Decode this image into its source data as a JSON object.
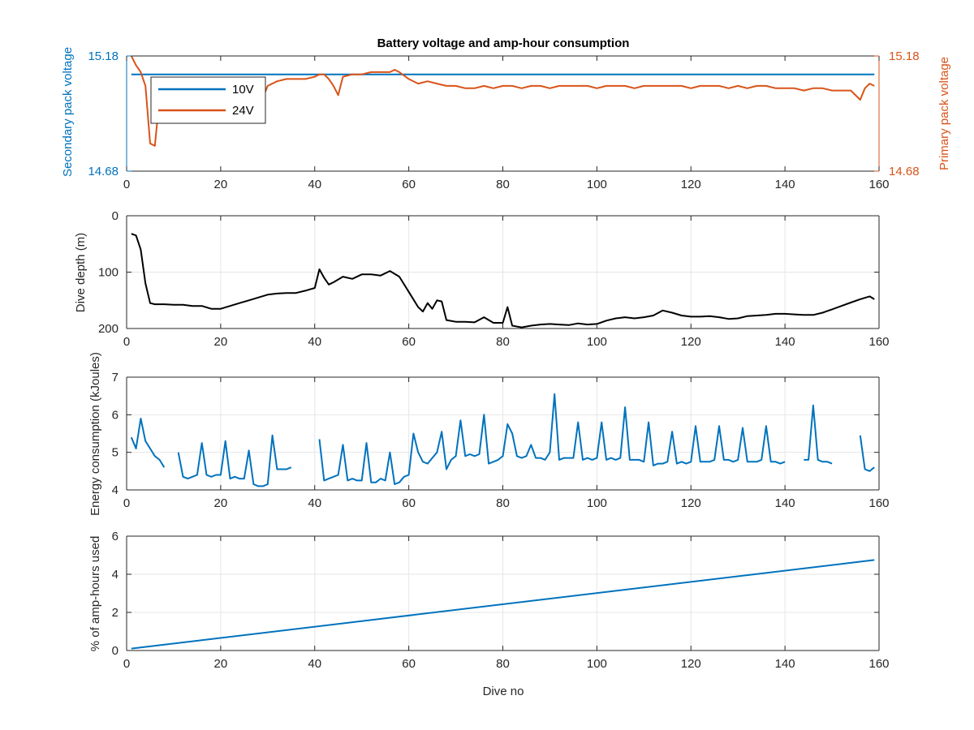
{
  "chart_data": [
    {
      "type": "line",
      "title": "Battery voltage and amp-hour consumption",
      "xlabel": "",
      "ylabel_left": "Secondary pack voltage",
      "ylabel_right": "Primary pack voltage",
      "xlim": [
        0,
        160
      ],
      "ylim": [
        14.68,
        15.18
      ],
      "xticks": [
        "0",
        "20",
        "40",
        "60",
        "80",
        "100",
        "120",
        "140",
        "160"
      ],
      "yticks_left": [
        "14.68",
        "15.18"
      ],
      "yticks_right": [
        "14.68",
        "15.18"
      ],
      "grid": false,
      "legend_position": "top-left",
      "series": [
        {
          "name": "10V",
          "color": "#0072bd",
          "x": [
            1,
            159
          ],
          "y": [
            15.1,
            15.1
          ]
        },
        {
          "name": "24V",
          "color": "#d95319",
          "x": [
            1,
            2,
            3,
            4,
            5,
            6,
            7,
            8,
            10,
            12,
            14,
            16,
            18,
            20,
            22,
            24,
            26,
            28,
            29,
            30,
            32,
            34,
            36,
            38,
            40,
            41,
            42,
            43,
            44,
            45,
            46,
            48,
            50,
            52,
            54,
            56,
            57,
            58,
            60,
            62,
            64,
            66,
            68,
            70,
            72,
            74,
            76,
            78,
            80,
            82,
            84,
            86,
            88,
            90,
            92,
            94,
            96,
            98,
            100,
            102,
            104,
            106,
            108,
            110,
            112,
            114,
            116,
            118,
            120,
            122,
            124,
            126,
            128,
            130,
            132,
            134,
            136,
            138,
            140,
            142,
            144,
            146,
            148,
            150,
            152,
            154,
            156,
            157,
            158,
            159
          ],
          "y": [
            15.18,
            15.14,
            15.11,
            15.05,
            14.8,
            14.79,
            15.0,
            15.06,
            15.08,
            15.07,
            15.06,
            15.07,
            15.06,
            15.06,
            15.05,
            15.04,
            15.05,
            15.06,
            15.0,
            15.05,
            15.07,
            15.08,
            15.08,
            15.08,
            15.09,
            15.1,
            15.1,
            15.08,
            15.05,
            15.01,
            15.09,
            15.1,
            15.1,
            15.11,
            15.11,
            15.11,
            15.12,
            15.11,
            15.08,
            15.06,
            15.07,
            15.06,
            15.05,
            15.05,
            15.04,
            15.04,
            15.05,
            15.04,
            15.05,
            15.05,
            15.04,
            15.05,
            15.05,
            15.04,
            15.05,
            15.05,
            15.05,
            15.05,
            15.04,
            15.05,
            15.05,
            15.05,
            15.04,
            15.05,
            15.05,
            15.05,
            15.05,
            15.05,
            15.04,
            15.05,
            15.05,
            15.05,
            15.04,
            15.05,
            15.04,
            15.05,
            15.05,
            15.04,
            15.04,
            15.04,
            15.03,
            15.04,
            15.04,
            15.03,
            15.03,
            15.03,
            14.99,
            15.04,
            15.06,
            15.05
          ]
        }
      ]
    },
    {
      "type": "line",
      "title": "",
      "xlabel": "",
      "ylabel": "Dive depth (m)",
      "xlim": [
        0,
        160
      ],
      "ylim": [
        200,
        0
      ],
      "y_reversed": true,
      "xticks": [
        "0",
        "20",
        "40",
        "60",
        "80",
        "100",
        "120",
        "140",
        "160"
      ],
      "yticks": [
        "0",
        "100",
        "200"
      ],
      "grid": true,
      "series": [
        {
          "color": "#000000",
          "x": [
            1,
            2,
            3,
            4,
            5,
            6,
            8,
            10,
            12,
            14,
            16,
            18,
            20,
            22,
            24,
            26,
            28,
            30,
            32,
            34,
            36,
            38,
            40,
            41,
            42,
            43,
            44,
            46,
            48,
            50,
            52,
            54,
            56,
            58,
            60,
            62,
            63,
            64,
            65,
            66,
            67,
            68,
            70,
            72,
            74,
            76,
            78,
            80,
            81,
            82,
            84,
            86,
            88,
            90,
            92,
            94,
            96,
            98,
            100,
            102,
            104,
            106,
            108,
            110,
            112,
            114,
            116,
            118,
            120,
            122,
            124,
            126,
            128,
            130,
            132,
            134,
            136,
            138,
            140,
            142,
            144,
            146,
            148,
            150,
            152,
            154,
            156,
            158,
            159
          ],
          "y": [
            32,
            35,
            60,
            120,
            155,
            157,
            157,
            158,
            158,
            160,
            160,
            165,
            165,
            160,
            155,
            150,
            145,
            140,
            138,
            137,
            137,
            133,
            128,
            95,
            110,
            122,
            118,
            108,
            112,
            104,
            104,
            106,
            98,
            108,
            135,
            162,
            170,
            155,
            165,
            150,
            152,
            185,
            188,
            188,
            189,
            180,
            190,
            190,
            162,
            195,
            198,
            195,
            193,
            192,
            193,
            194,
            191,
            193,
            192,
            186,
            182,
            180,
            182,
            180,
            177,
            168,
            172,
            177,
            179,
            179,
            178,
            180,
            183,
            182,
            178,
            177,
            176,
            174,
            174,
            175,
            176,
            176,
            172,
            166,
            160,
            154,
            148,
            143,
            148
          ]
        }
      ]
    },
    {
      "type": "line",
      "title": "",
      "xlabel": "",
      "ylabel": "Energy consumption (kJoules)",
      "xlim": [
        0,
        160
      ],
      "ylim": [
        4,
        7
      ],
      "xticks": [
        "0",
        "20",
        "40",
        "60",
        "80",
        "100",
        "120",
        "140",
        "160"
      ],
      "yticks": [
        "4",
        "5",
        "6",
        "7"
      ],
      "grid": true,
      "series": [
        {
          "color": "#0072bd",
          "segments": [
            {
              "x": [
                1,
                2,
                3,
                4,
                5,
                6,
                7,
                8
              ],
              "y": [
                5.4,
                5.1,
                5.9,
                5.3,
                5.1,
                4.9,
                4.8,
                4.6
              ]
            },
            {
              "x": [
                11,
                12,
                13,
                14,
                15,
                16,
                17,
                18,
                19,
                20,
                21,
                22,
                23,
                24,
                25,
                26,
                27,
                28,
                29,
                30,
                31,
                32,
                33,
                34,
                35
              ],
              "y": [
                5.0,
                4.35,
                4.3,
                4.35,
                4.4,
                5.25,
                4.4,
                4.35,
                4.4,
                4.4,
                5.3,
                4.3,
                4.35,
                4.3,
                4.3,
                5.05,
                4.15,
                4.1,
                4.1,
                4.15,
                5.45,
                4.55,
                4.55,
                4.55,
                4.6
              ]
            },
            {
              "x": [
                41,
                42,
                43,
                44,
                45,
                46,
                47,
                48,
                49,
                50,
                51,
                52,
                53,
                54,
                55,
                56,
                57,
                58,
                59,
                60,
                61,
                62,
                63,
                64,
                65,
                66,
                67,
                68,
                69,
                70,
                71,
                72,
                73,
                74,
                75,
                76,
                77,
                78,
                79,
                80,
                81,
                82,
                83,
                84,
                85,
                86,
                87,
                88,
                89,
                90,
                91,
                92,
                93,
                94,
                95,
                96,
                97,
                98,
                99,
                100,
                101,
                102,
                103,
                104,
                105,
                106,
                107,
                108,
                109,
                110,
                111,
                112,
                113,
                114,
                115,
                116,
                117,
                118,
                119,
                120,
                121,
                122,
                123,
                124,
                125,
                126,
                127,
                128,
                129,
                130,
                131,
                132,
                133,
                134,
                135,
                136,
                137,
                138,
                139,
                140
              ],
              "y": [
                5.35,
                4.25,
                4.3,
                4.35,
                4.4,
                5.2,
                4.25,
                4.3,
                4.25,
                4.25,
                5.25,
                4.2,
                4.2,
                4.3,
                4.25,
                5.0,
                4.15,
                4.2,
                4.35,
                4.4,
                5.5,
                5.0,
                4.75,
                4.7,
                4.85,
                5.0,
                5.55,
                4.55,
                4.8,
                4.9,
                5.85,
                4.9,
                4.95,
                4.9,
                4.95,
                6.0,
                4.7,
                4.75,
                4.8,
                4.9,
                5.75,
                5.5,
                4.9,
                4.85,
                4.9,
                5.2,
                4.85,
                4.85,
                4.8,
                5.0,
                6.55,
                4.8,
                4.85,
                4.85,
                4.85,
                5.8,
                4.8,
                4.85,
                4.8,
                4.85,
                5.8,
                4.8,
                4.85,
                4.8,
                4.85,
                6.2,
                4.8,
                4.8,
                4.8,
                4.75,
                5.8,
                4.65,
                4.7,
                4.7,
                4.75,
                5.55,
                4.7,
                4.75,
                4.7,
                4.75,
                5.7,
                4.75,
                4.75,
                4.75,
                4.8,
                5.7,
                4.8,
                4.8,
                4.75,
                4.8,
                5.65,
                4.75,
                4.75,
                4.75,
                4.8,
                5.7,
                4.75,
                4.75,
                4.7,
                4.75
              ]
            },
            {
              "x": [
                144,
                145,
                146,
                147,
                148,
                149,
                150
              ],
              "y": [
                4.8,
                4.8,
                6.25,
                4.8,
                4.75,
                4.75,
                4.7
              ]
            },
            {
              "x": [
                156,
                157,
                158,
                159
              ],
              "y": [
                5.45,
                4.55,
                4.5,
                4.6
              ]
            }
          ]
        }
      ]
    },
    {
      "type": "line",
      "title": "",
      "xlabel": "Dive no",
      "ylabel": "% of amp-hours used",
      "xlim": [
        0,
        160
      ],
      "ylim": [
        0,
        6
      ],
      "xticks": [
        "0",
        "20",
        "40",
        "60",
        "80",
        "100",
        "120",
        "140",
        "160"
      ],
      "yticks": [
        "0",
        "2",
        "4",
        "6"
      ],
      "grid": true,
      "series": [
        {
          "color": "#0072bd",
          "x": [
            1,
            159
          ],
          "y": [
            0.1,
            4.75
          ]
        }
      ]
    }
  ]
}
